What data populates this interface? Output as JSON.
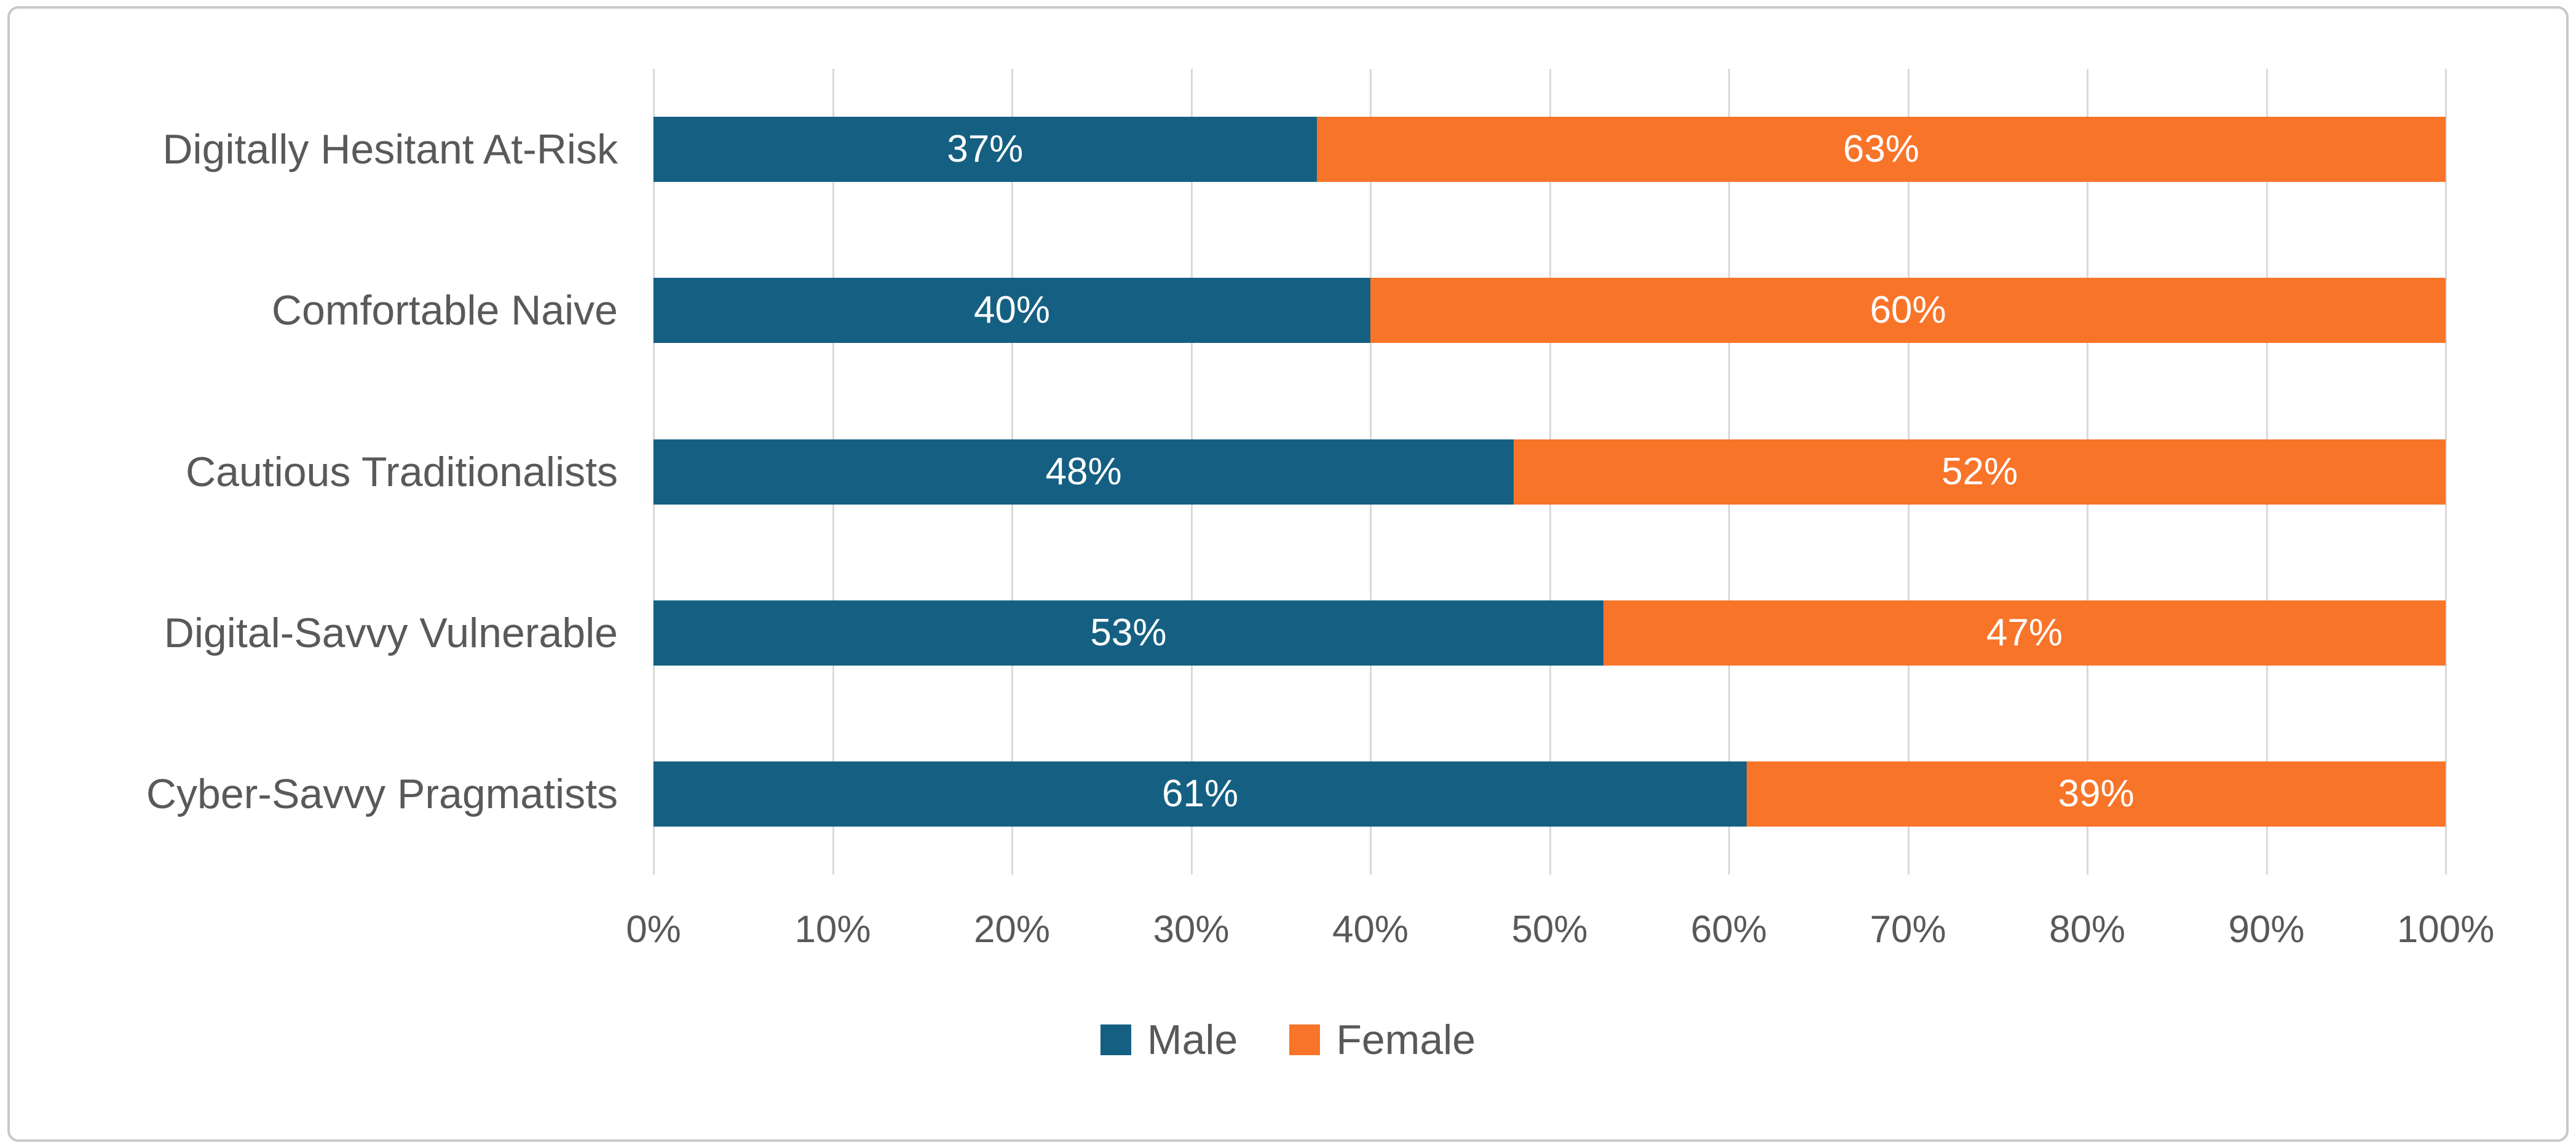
{
  "chart_data": {
    "type": "bar",
    "orientation": "horizontal",
    "stacked": true,
    "title": "",
    "xlabel": "",
    "ylabel": "",
    "categories": [
      "Digitally Hesitant At-Risk",
      "Comfortable Naive",
      "Cautious Traditionalists",
      "Digital-Savvy Vulnerable",
      "Cyber-Savvy Pragmatists"
    ],
    "series": [
      {
        "name": "Male",
        "color": "#156082",
        "values": [
          37,
          40,
          48,
          53,
          61
        ]
      },
      {
        "name": "Female",
        "color": "#F87429",
        "values": [
          63,
          60,
          52,
          47,
          39
        ]
      }
    ],
    "value_suffix": "%",
    "data_label_color": "#FFFFFF",
    "xlim": [
      0,
      100
    ],
    "x_ticks": [
      "0%",
      "10%",
      "20%",
      "30%",
      "40%",
      "50%",
      "60%",
      "70%",
      "80%",
      "90%",
      "100%"
    ],
    "grid": "vertical",
    "gridline_color": "#D9D9D9",
    "axis_text_color": "#595959",
    "legend_position": "bottom",
    "legend_labels": [
      "Male",
      "Female"
    ],
    "frame_border_color": "#C9C9C9"
  }
}
